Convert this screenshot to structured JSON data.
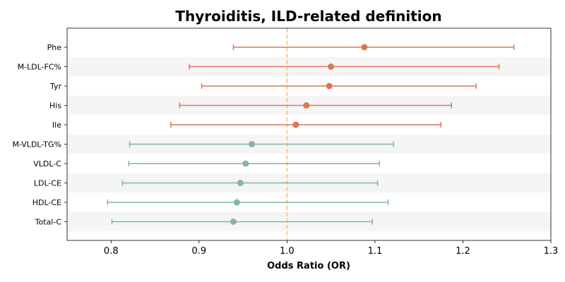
{
  "chart_data": {
    "type": "forest",
    "title": "Thyroiditis, ILD-related definition",
    "xlabel": "Odds Ratio (OR)",
    "ylabel": "",
    "xlim": [
      0.75,
      1.3
    ],
    "xticks": [
      "0.8",
      "0.9",
      "1.0",
      "1.1",
      "1.2",
      "1.3"
    ],
    "reference_line": 1.0,
    "colors": {
      "positive": "#dd7557",
      "negative": "#84b69c",
      "reference": "#f0c27b",
      "band": "#f5f5f5"
    },
    "rows": [
      {
        "label": "Phe",
        "or": 1.088,
        "lower": 0.939,
        "upper": 1.258,
        "group": "positive"
      },
      {
        "label": "M-LDL-FC%",
        "or": 1.05,
        "lower": 0.889,
        "upper": 1.241,
        "group": "positive"
      },
      {
        "label": "Tyr",
        "or": 1.048,
        "lower": 0.903,
        "upper": 1.215,
        "group": "positive"
      },
      {
        "label": "His",
        "or": 1.022,
        "lower": 0.878,
        "upper": 1.187,
        "group": "positive"
      },
      {
        "label": "Ile",
        "or": 1.01,
        "lower": 0.868,
        "upper": 1.175,
        "group": "positive"
      },
      {
        "label": "M-VLDL-TG%",
        "or": 0.96,
        "lower": 0.821,
        "upper": 1.121,
        "group": "negative"
      },
      {
        "label": "VLDL-C",
        "or": 0.953,
        "lower": 0.82,
        "upper": 1.105,
        "group": "negative"
      },
      {
        "label": "LDL-CE",
        "or": 0.947,
        "lower": 0.813,
        "upper": 1.103,
        "group": "negative"
      },
      {
        "label": "HDL-CE",
        "or": 0.943,
        "lower": 0.796,
        "upper": 1.115,
        "group": "negative"
      },
      {
        "label": "Total-C",
        "or": 0.939,
        "lower": 0.801,
        "upper": 1.097,
        "group": "negative"
      }
    ]
  }
}
